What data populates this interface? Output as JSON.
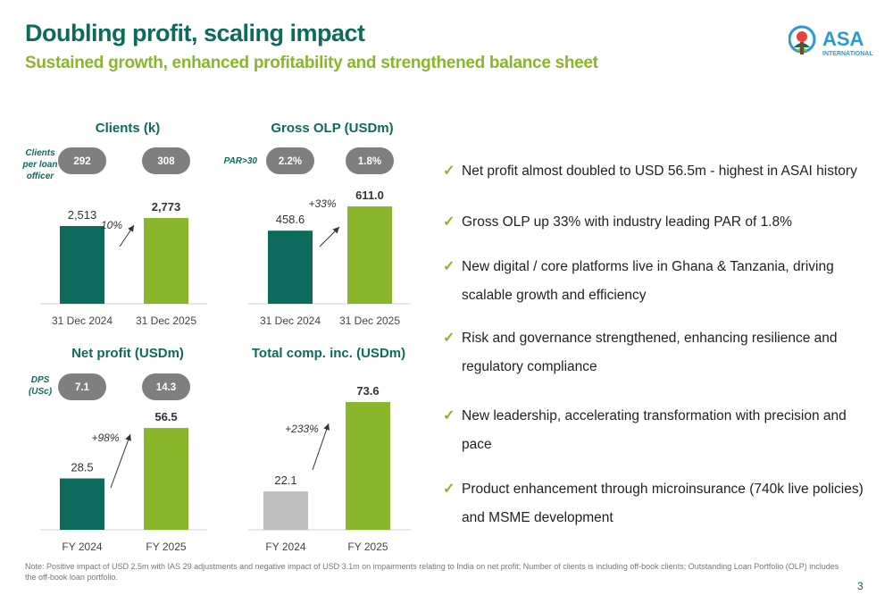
{
  "title": "Doubling profit, scaling impact",
  "subtitle": "Sustained growth, enhanced profitability and strengthened balance sheet",
  "logo": {
    "name": "ASA",
    "sub": "INTERNATIONAL"
  },
  "colors": {
    "dark_green": "#0d6b5e",
    "light_green": "#8ab62b",
    "grey_bar": "#bfbfbf",
    "pill": "#7f7f7f"
  },
  "chart_data": [
    {
      "type": "bar",
      "title": "Clients (k)",
      "categories": [
        "31 Dec 2024",
        "31 Dec 2025"
      ],
      "values": [
        2513,
        2773
      ],
      "value_labels": [
        "2,513",
        "2,773"
      ],
      "bar_colors": [
        "#0d6b5e",
        "#8ab62b"
      ],
      "growth_label": "10%",
      "kpi_label": [
        "Clients",
        "per loan",
        "officer"
      ],
      "kpi_values": [
        "292",
        "308"
      ]
    },
    {
      "type": "bar",
      "title": "Gross OLP (USDm)",
      "categories": [
        "31 Dec 2024",
        "31 Dec 2025"
      ],
      "values": [
        458.6,
        611.0
      ],
      "value_labels": [
        "458.6",
        "611.0"
      ],
      "bar_colors": [
        "#0d6b5e",
        "#8ab62b"
      ],
      "growth_label": "+33%",
      "kpi_label": [
        "PAR>30"
      ],
      "kpi_values": [
        "2.2%",
        "1.8%"
      ]
    },
    {
      "type": "bar",
      "title": "Net profit (USDm)",
      "categories": [
        "FY 2024",
        "FY 2025"
      ],
      "values": [
        28.5,
        56.5
      ],
      "value_labels": [
        "28.5",
        "56.5"
      ],
      "bar_colors": [
        "#0d6b5e",
        "#8ab62b"
      ],
      "growth_label": "+98%",
      "kpi_label": [
        "DPS",
        "(USc)"
      ],
      "kpi_values": [
        "7.1",
        "14.3"
      ]
    },
    {
      "type": "bar",
      "title": "Total comp. inc. (USDm)",
      "categories": [
        "FY 2024",
        "FY 2025"
      ],
      "values": [
        22.1,
        73.6
      ],
      "value_labels": [
        "22.1",
        "73.6"
      ],
      "bar_colors": [
        "#bfbfbf",
        "#8ab62b"
      ],
      "growth_label": "+233%",
      "kpi_label": [],
      "kpi_values": []
    }
  ],
  "bullets": [
    "Net profit almost doubled to USD 56.5m - highest in ASAI history",
    "Gross OLP up 33% with industry leading PAR of 1.8%",
    "New digital / core platforms live in Ghana & Tanzania, driving scalable growth and efficiency",
    "Risk and governance strengthened, enhancing resilience and regulatory compliance",
    "New leadership, accelerating transformation with precision and pace",
    "Product enhancement through microinsurance (740k live policies) and MSME development"
  ],
  "check_symbol": "✓",
  "note": "Note: Positive impact of USD 2.5m with IAS 29 adjustments and negative impact of USD 3.1m on impairments relating to India on net profit; Number of clients is including off-book clients; Outstanding Loan Portfolio (OLP) includes the off-book loan portfolio.",
  "page_number": "3"
}
